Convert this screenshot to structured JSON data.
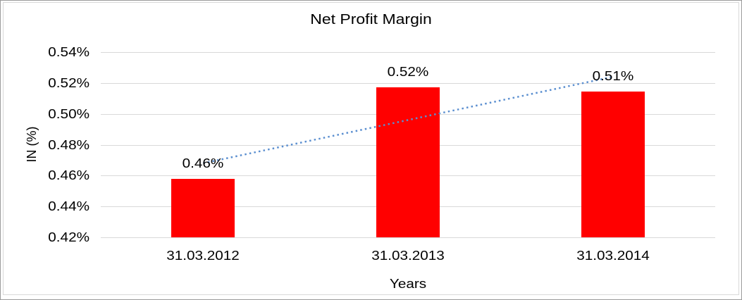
{
  "chart_data": {
    "type": "bar",
    "title": "Net Profit Margin",
    "xlabel": "Years",
    "ylabel": "IN (%)",
    "categories": [
      "31.03.2012",
      "31.03.2013",
      "31.03.2014"
    ],
    "values": [
      0.4577,
      0.5174,
      0.5146
    ],
    "data_labels": [
      "0.46%",
      "0.52%",
      "0.51%"
    ],
    "y_ticks": [
      {
        "value": 0.54,
        "label": "0.54%"
      },
      {
        "value": 0.52,
        "label": "0.52%"
      },
      {
        "value": 0.5,
        "label": "0.50%"
      },
      {
        "value": 0.48,
        "label": "0.48%"
      },
      {
        "value": 0.46,
        "label": "0.46%"
      },
      {
        "value": 0.44,
        "label": "0.44%"
      },
      {
        "value": 0.42,
        "label": "0.42%"
      }
    ],
    "ylim": [
      0.42,
      0.54
    ],
    "grid": true,
    "legend": "none",
    "bar_color": "#FF0000",
    "gridline_color": "#D9D9D9",
    "text_color": "#000000",
    "trendline": {
      "style": "dotted",
      "color": "#5B8FD0",
      "start_value": 0.468,
      "end_value": 0.524
    }
  }
}
